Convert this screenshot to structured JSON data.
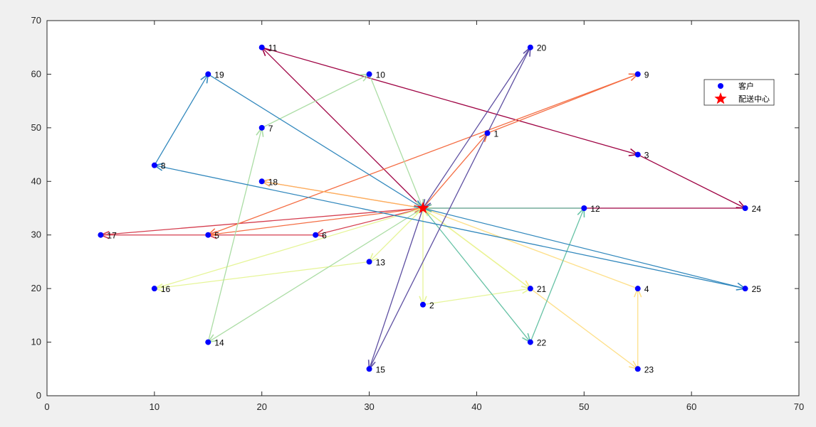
{
  "chart_data": {
    "type": "scatter",
    "xlim": [
      0,
      70
    ],
    "ylim": [
      0,
      70
    ],
    "xticks": [
      "0",
      "10",
      "20",
      "30",
      "40",
      "50",
      "60",
      "70"
    ],
    "yticks": [
      "0",
      "10",
      "20",
      "30",
      "40",
      "50",
      "60",
      "70"
    ],
    "grid": false,
    "legend_position": "top-right",
    "legend": [
      {
        "label": "客户",
        "marker": "circle",
        "color": "#0000ff"
      },
      {
        "label": "配送中心",
        "marker": "star",
        "color": "#ff0000"
      }
    ],
    "depot": {
      "x": 35,
      "y": 35
    },
    "customers": [
      {
        "id": "1",
        "x": 41,
        "y": 49
      },
      {
        "id": "2",
        "x": 35,
        "y": 17
      },
      {
        "id": "3",
        "x": 55,
        "y": 45
      },
      {
        "id": "4",
        "x": 55,
        "y": 20
      },
      {
        "id": "5",
        "x": 15,
        "y": 30
      },
      {
        "id": "6",
        "x": 25,
        "y": 30
      },
      {
        "id": "7",
        "x": 20,
        "y": 50
      },
      {
        "id": "8",
        "x": 10,
        "y": 43
      },
      {
        "id": "9",
        "x": 55,
        "y": 60
      },
      {
        "id": "10",
        "x": 30,
        "y": 60
      },
      {
        "id": "11",
        "x": 20,
        "y": 65
      },
      {
        "id": "12",
        "x": 50,
        "y": 35
      },
      {
        "id": "13",
        "x": 30,
        "y": 25
      },
      {
        "id": "14",
        "x": 15,
        "y": 10
      },
      {
        "id": "15",
        "x": 30,
        "y": 5
      },
      {
        "id": "16",
        "x": 10,
        "y": 20
      },
      {
        "id": "17",
        "x": 5,
        "y": 30
      },
      {
        "id": "18",
        "x": 20,
        "y": 40
      },
      {
        "id": "19",
        "x": 15,
        "y": 60
      },
      {
        "id": "20",
        "x": 45,
        "y": 65
      },
      {
        "id": "21",
        "x": 45,
        "y": 20
      },
      {
        "id": "22",
        "x": 45,
        "y": 10
      },
      {
        "id": "23",
        "x": 55,
        "y": 5
      },
      {
        "id": "24",
        "x": 65,
        "y": 35
      },
      {
        "id": "25",
        "x": 65,
        "y": 20
      }
    ],
    "routes": [
      {
        "color": "#9e0142",
        "path": [
          "D",
          "11",
          "3",
          "24",
          "D"
        ]
      },
      {
        "color": "#d53e4f",
        "path": [
          "D",
          "6",
          "5",
          "17",
          "D"
        ]
      },
      {
        "color": "#f46d43",
        "path": [
          "D",
          "1",
          "9",
          "5",
          "D"
        ]
      },
      {
        "color": "#fdae61",
        "path": [
          "D",
          "18",
          "D"
        ]
      },
      {
        "color": "#fee08b",
        "path": [
          "D",
          "23",
          "4",
          "D"
        ]
      },
      {
        "color": "#ffe878",
        "path": [
          "D",
          "21",
          "D"
        ]
      },
      {
        "color": "#e6f598",
        "path": [
          "D",
          "2",
          "21",
          "D"
        ]
      },
      {
        "color": "#e6f598",
        "path": [
          "D",
          "13",
          "16",
          "D"
        ]
      },
      {
        "color": "#abdda4",
        "path": [
          "D",
          "14",
          "7",
          "10",
          "D"
        ]
      },
      {
        "color": "#66c2a5",
        "path": [
          "D",
          "22",
          "12",
          "D"
        ]
      },
      {
        "color": "#3288bd",
        "path": [
          "D",
          "25",
          "8",
          "19",
          "D"
        ]
      },
      {
        "color": "#5e4fa2",
        "path": [
          "D",
          "15",
          "20",
          "D"
        ]
      }
    ]
  }
}
